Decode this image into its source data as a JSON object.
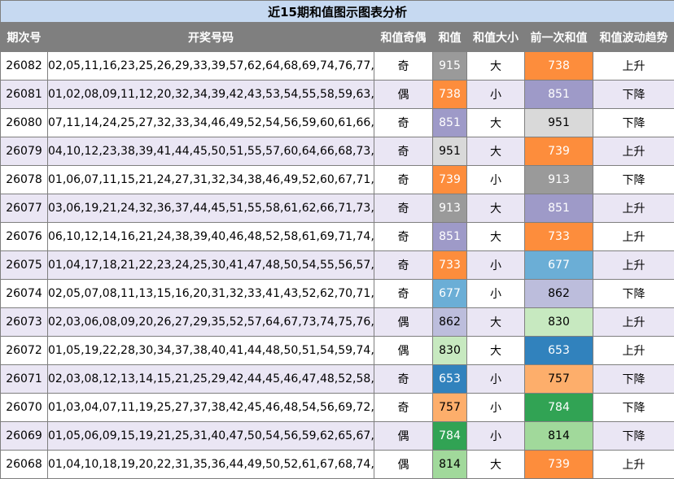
{
  "title": "近15期和值图示图表分析",
  "headers": [
    "期次号",
    "开奖号码",
    "和值奇偶",
    "和值",
    "和值大小",
    "前一次和值",
    "和值波动趋势"
  ],
  "rows": [
    {
      "issue": "26082",
      "numbers": "02,05,11,16,23,25,26,29,33,39,57,62,64,68,69,74,76,77,79,80",
      "parity": "奇",
      "sum": "915",
      "sum_color": "#9a9a9a",
      "sum_text": "#ffffff",
      "size": "大",
      "prev": "738",
      "prev_color": "#fd8d3c",
      "prev_text": "#ffffff",
      "trend": "上升"
    },
    {
      "issue": "26081",
      "numbers": "01,02,08,09,11,12,20,32,34,39,42,43,53,54,55,58,59,63,66,77",
      "parity": "偶",
      "sum": "738",
      "sum_color": "#fd8d3c",
      "sum_text": "#ffffff",
      "size": "小",
      "prev": "851",
      "prev_color": "#9e9ac8",
      "prev_text": "#ffffff",
      "trend": "下降"
    },
    {
      "issue": "26080",
      "numbers": "07,11,14,24,25,27,32,33,34,46,49,52,54,56,59,60,61,66,69,72",
      "parity": "奇",
      "sum": "851",
      "sum_color": "#9e9ac8",
      "sum_text": "#ffffff",
      "size": "大",
      "prev": "951",
      "prev_color": "#d9d9d9",
      "prev_text": "#000000",
      "trend": "下降"
    },
    {
      "issue": "26079",
      "numbers": "04,10,12,23,38,39,41,44,45,50,51,55,57,60,64,66,68,73,75,76",
      "parity": "奇",
      "sum": "951",
      "sum_color": "#d9d9d9",
      "sum_text": "#000000",
      "size": "大",
      "prev": "739",
      "prev_color": "#fd8d3c",
      "prev_text": "#ffffff",
      "trend": "上升"
    },
    {
      "issue": "26078",
      "numbers": "01,06,07,11,15,21,24,27,31,32,34,38,46,49,52,60,67,71,73,74",
      "parity": "奇",
      "sum": "739",
      "sum_color": "#fd8d3c",
      "sum_text": "#ffffff",
      "size": "小",
      "prev": "913",
      "prev_color": "#9a9a9a",
      "prev_text": "#ffffff",
      "trend": "下降"
    },
    {
      "issue": "26077",
      "numbers": "03,06,19,21,24,32,36,37,44,45,51,55,58,61,62,66,71,73,74,75",
      "parity": "奇",
      "sum": "913",
      "sum_color": "#9a9a9a",
      "sum_text": "#ffffff",
      "size": "大",
      "prev": "851",
      "prev_color": "#9e9ac8",
      "prev_text": "#ffffff",
      "trend": "上升"
    },
    {
      "issue": "26076",
      "numbers": "06,10,12,14,16,21,24,38,39,40,46,48,52,58,61,69,71,74,75,77",
      "parity": "奇",
      "sum": "851",
      "sum_color": "#9e9ac8",
      "sum_text": "#ffffff",
      "size": "大",
      "prev": "733",
      "prev_color": "#fd8d3c",
      "prev_text": "#ffffff",
      "trend": "上升"
    },
    {
      "issue": "26075",
      "numbers": "01,04,17,18,21,22,23,24,25,30,41,47,48,50,54,55,56,57,62,78",
      "parity": "奇",
      "sum": "733",
      "sum_color": "#fd8d3c",
      "sum_text": "#ffffff",
      "size": "小",
      "prev": "677",
      "prev_color": "#6baed6",
      "prev_text": "#ffffff",
      "trend": "上升"
    },
    {
      "issue": "26074",
      "numbers": "02,05,07,08,11,13,15,16,20,31,32,33,41,43,52,62,70,71,72,73",
      "parity": "奇",
      "sum": "677",
      "sum_color": "#6baed6",
      "sum_text": "#ffffff",
      "size": "小",
      "prev": "862",
      "prev_color": "#bcbddc",
      "prev_text": "#000000",
      "trend": "下降"
    },
    {
      "issue": "26073",
      "numbers": "02,03,06,08,09,20,26,27,29,35,52,57,64,67,73,74,75,76,79,80",
      "parity": "偶",
      "sum": "862",
      "sum_color": "#bcbddc",
      "sum_text": "#000000",
      "size": "大",
      "prev": "830",
      "prev_color": "#c7e9c0",
      "prev_text": "#000000",
      "trend": "上升"
    },
    {
      "issue": "26072",
      "numbers": "01,05,19,22,28,30,34,37,38,40,41,44,48,50,51,54,59,74,75,80",
      "parity": "偶",
      "sum": "830",
      "sum_color": "#c7e9c0",
      "sum_text": "#000000",
      "size": "大",
      "prev": "653",
      "prev_color": "#3182bd",
      "prev_text": "#ffffff",
      "trend": "上升"
    },
    {
      "issue": "26071",
      "numbers": "02,03,08,12,13,14,15,21,25,29,42,44,45,46,47,48,52,58,63,66",
      "parity": "奇",
      "sum": "653",
      "sum_color": "#3182bd",
      "sum_text": "#ffffff",
      "size": "小",
      "prev": "757",
      "prev_color": "#fdae6b",
      "prev_text": "#000000",
      "trend": "下降"
    },
    {
      "issue": "26070",
      "numbers": "01,03,04,07,11,19,25,27,37,38,42,45,46,48,54,56,69,72,76,77",
      "parity": "奇",
      "sum": "757",
      "sum_color": "#fdae6b",
      "sum_text": "#000000",
      "size": "小",
      "prev": "784",
      "prev_color": "#31a354",
      "prev_text": "#ffffff",
      "trend": "下降"
    },
    {
      "issue": "26069",
      "numbers": "01,05,06,09,15,19,21,25,31,40,47,50,54,56,59,62,65,67,72,80",
      "parity": "偶",
      "sum": "784",
      "sum_color": "#31a354",
      "sum_text": "#ffffff",
      "size": "小",
      "prev": "814",
      "prev_color": "#a1d99b",
      "prev_text": "#000000",
      "trend": "下降"
    },
    {
      "issue": "26068",
      "numbers": "01,04,10,18,19,20,22,31,35,36,44,49,50,52,61,67,68,74,75,78",
      "parity": "偶",
      "sum": "814",
      "sum_color": "#a1d99b",
      "sum_text": "#000000",
      "size": "大",
      "prev": "739",
      "prev_color": "#fd8d3c",
      "prev_text": "#ffffff",
      "trend": "上升"
    }
  ]
}
